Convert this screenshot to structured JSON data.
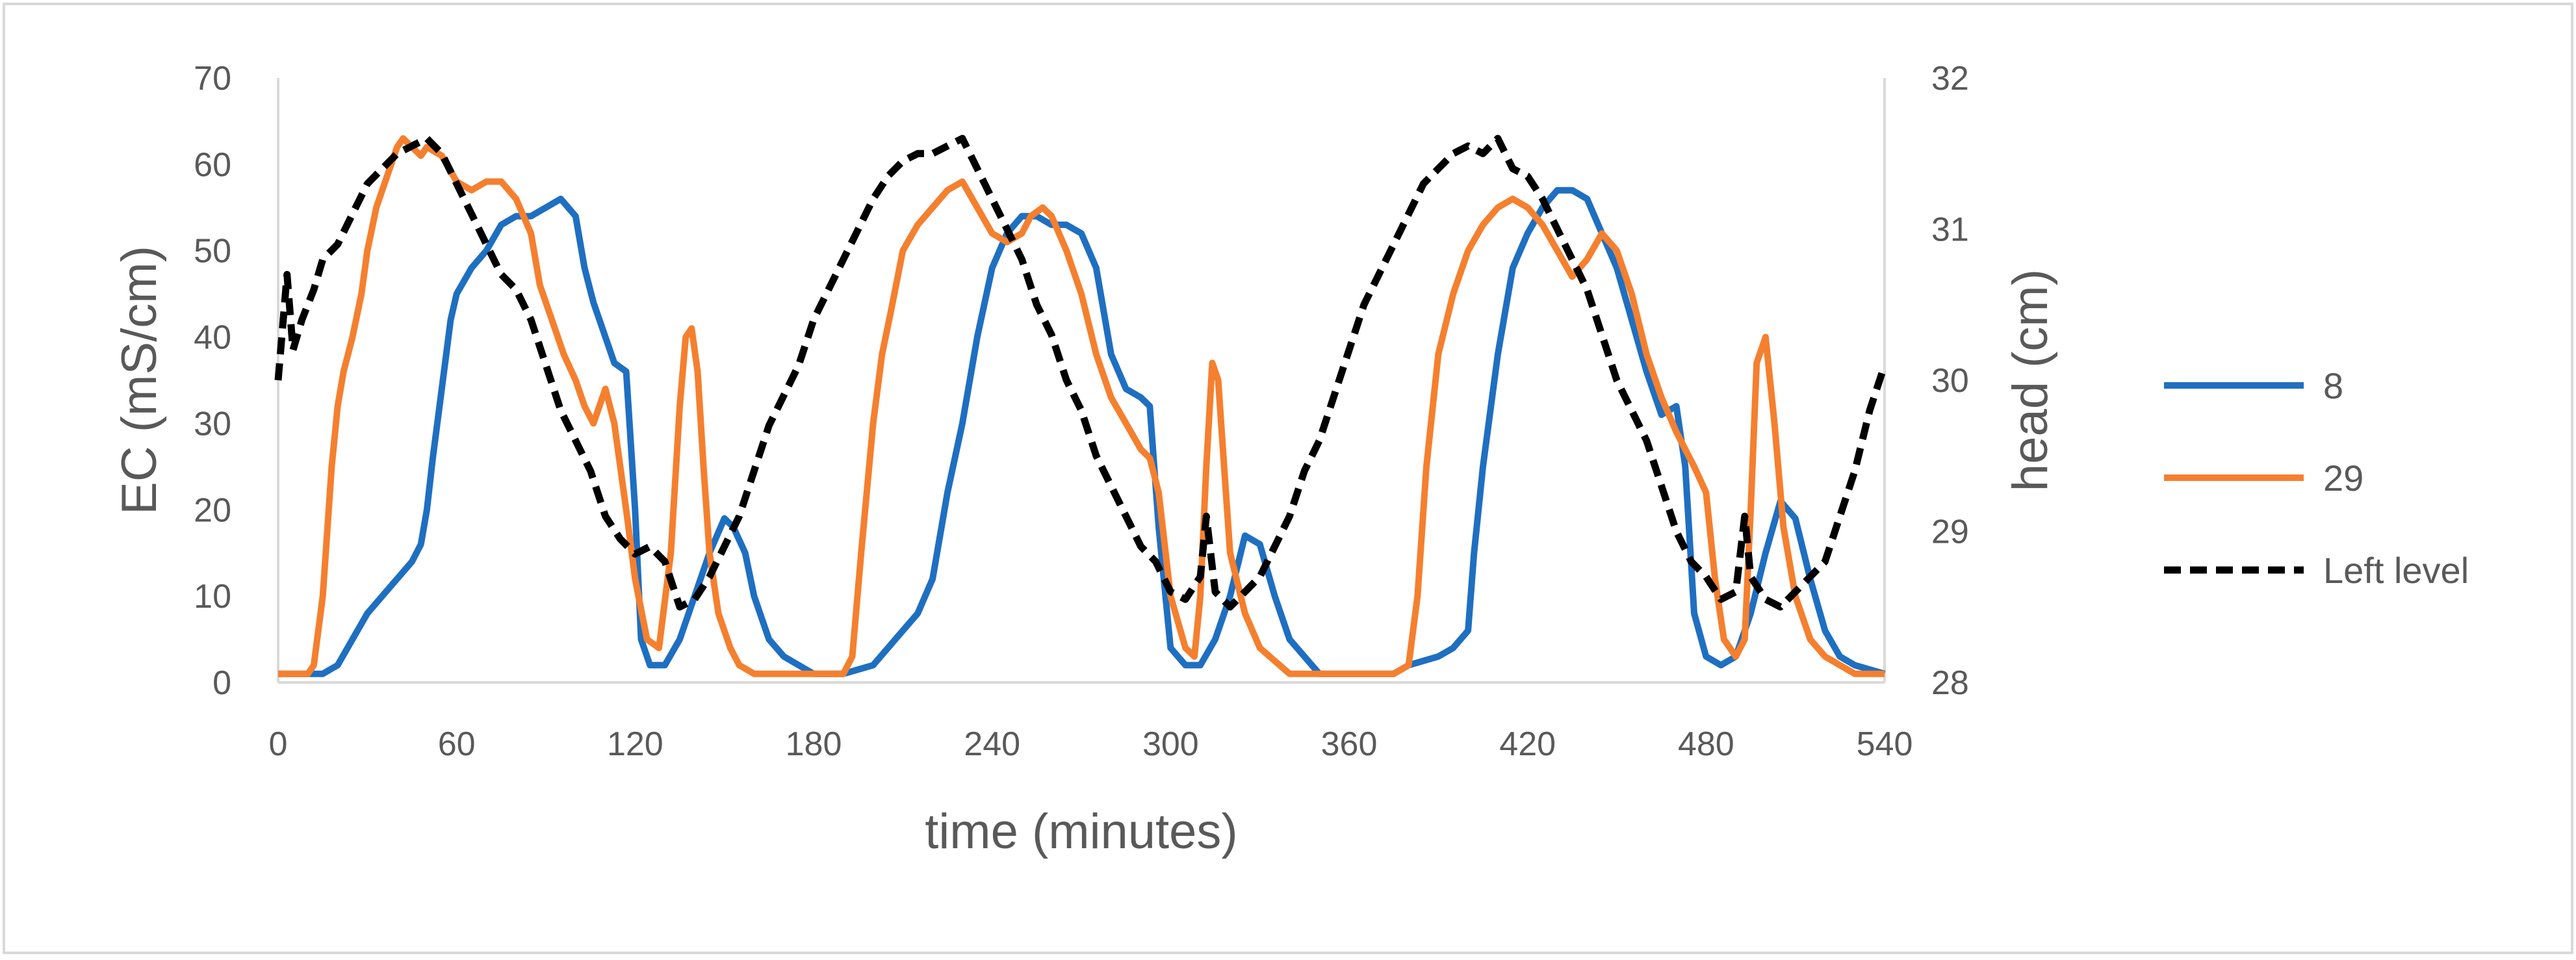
{
  "chart_data": {
    "type": "line",
    "title": "",
    "xlabel": "time (minutes)",
    "ylabel": "EC (mS/cm)",
    "y2label": "head (cm)",
    "xlim": [
      0,
      540
    ],
    "ylim": [
      0,
      70
    ],
    "y2lim": [
      28,
      32
    ],
    "xticks": [
      0,
      60,
      120,
      180,
      240,
      300,
      360,
      420,
      480,
      540
    ],
    "yticks": [
      0,
      10,
      20,
      30,
      40,
      50,
      60,
      70
    ],
    "y2ticks": [
      28,
      29,
      30,
      31,
      32
    ],
    "grid": false,
    "legend_position": "right",
    "series": [
      {
        "name": "8",
        "axis": "left",
        "color": "#1f6fc1",
        "style": "solid",
        "x": [
          0,
          15,
          20,
          25,
          30,
          35,
          40,
          45,
          48,
          50,
          52,
          55,
          58,
          60,
          65,
          70,
          75,
          80,
          85,
          90,
          95,
          100,
          103,
          106,
          110,
          113,
          117,
          120,
          122,
          125,
          130,
          135,
          140,
          145,
          150,
          153,
          157,
          160,
          165,
          170,
          175,
          180,
          190,
          200,
          205,
          210,
          215,
          220,
          225,
          230,
          235,
          240,
          245,
          250,
          255,
          260,
          265,
          270,
          275,
          280,
          285,
          290,
          293,
          296,
          300,
          305,
          310,
          315,
          320,
          325,
          330,
          335,
          340,
          345,
          350,
          360,
          370,
          375,
          380,
          390,
          395,
          400,
          402,
          405,
          410,
          415,
          420,
          425,
          430,
          435,
          440,
          445,
          450,
          455,
          460,
          465,
          470,
          473,
          476,
          480,
          485,
          490,
          495,
          500,
          505,
          510,
          515,
          520,
          525,
          530,
          540
        ],
        "values": [
          1,
          1,
          2,
          5,
          8,
          10,
          12,
          14,
          16,
          20,
          26,
          34,
          42,
          45,
          48,
          50,
          53,
          54,
          54,
          55,
          56,
          54,
          48,
          44,
          40,
          37,
          36,
          20,
          5,
          2,
          2,
          5,
          10,
          15,
          19,
          18,
          15,
          10,
          5,
          3,
          2,
          1,
          1,
          2,
          4,
          6,
          8,
          12,
          22,
          30,
          40,
          48,
          52,
          54,
          54,
          53,
          53,
          52,
          48,
          38,
          34,
          33,
          32,
          18,
          4,
          2,
          2,
          5,
          10,
          17,
          16,
          10,
          5,
          3,
          1,
          1,
          1,
          1,
          2,
          3,
          4,
          6,
          15,
          25,
          38,
          48,
          52,
          55,
          57,
          57,
          56,
          52,
          48,
          42,
          36,
          31,
          32,
          25,
          8,
          3,
          2,
          3,
          8,
          15,
          21,
          19,
          12,
          6,
          3,
          2,
          1
        ]
      },
      {
        "name": "29",
        "axis": "left",
        "color": "#f4802f",
        "style": "solid",
        "x": [
          0,
          10,
          12,
          15,
          18,
          20,
          22,
          25,
          28,
          30,
          33,
          36,
          40,
          42,
          45,
          48,
          50,
          55,
          60,
          65,
          70,
          75,
          80,
          85,
          88,
          92,
          96,
          100,
          103,
          106,
          110,
          113,
          117,
          120,
          124,
          128,
          132,
          135,
          137,
          139,
          141,
          143,
          145,
          148,
          152,
          155,
          160,
          165,
          170,
          175,
          180,
          185,
          190,
          193,
          196,
          200,
          203,
          206,
          210,
          215,
          220,
          225,
          230,
          235,
          240,
          245,
          250,
          253,
          257,
          260,
          265,
          270,
          275,
          280,
          285,
          290,
          293,
          296,
          300,
          305,
          308,
          310,
          312,
          314,
          316,
          318,
          320,
          325,
          330,
          340,
          350,
          360,
          365,
          370,
          375,
          380,
          383,
          386,
          390,
          395,
          400,
          405,
          410,
          415,
          420,
          425,
          430,
          435,
          440,
          445,
          450,
          455,
          460,
          465,
          470,
          473,
          476,
          480,
          483,
          486,
          490,
          493,
          495,
          497,
          500,
          503,
          506,
          510,
          515,
          520,
          530,
          540
        ],
        "values": [
          1,
          1,
          2,
          10,
          25,
          32,
          36,
          40,
          45,
          50,
          55,
          58,
          62,
          63,
          62,
          61,
          62,
          61,
          58,
          57,
          58,
          58,
          56,
          52,
          46,
          42,
          38,
          35,
          32,
          30,
          34,
          30,
          20,
          12,
          5,
          4,
          15,
          32,
          40,
          41,
          36,
          25,
          15,
          8,
          4,
          2,
          1,
          1,
          1,
          1,
          1,
          1,
          1,
          3,
          15,
          30,
          38,
          43,
          50,
          53,
          55,
          57,
          58,
          55,
          52,
          51,
          52,
          54,
          55,
          54,
          50,
          45,
          38,
          33,
          30,
          27,
          26,
          22,
          10,
          4,
          3,
          10,
          25,
          37,
          35,
          25,
          15,
          8,
          4,
          1,
          1,
          1,
          1,
          1,
          1,
          2,
          10,
          25,
          38,
          45,
          50,
          53,
          55,
          56,
          55,
          53,
          50,
          47,
          49,
          52,
          50,
          45,
          38,
          33,
          29,
          27,
          25,
          22,
          12,
          5,
          3,
          5,
          20,
          37,
          40,
          30,
          18,
          10,
          5,
          3,
          1,
          1
        ]
      },
      {
        "name": "Left level",
        "axis": "right",
        "color": "#000000",
        "style": "dashed",
        "x": [
          0,
          3,
          5,
          8,
          12,
          15,
          20,
          25,
          30,
          35,
          40,
          45,
          50,
          55,
          60,
          65,
          70,
          75,
          80,
          85,
          90,
          95,
          100,
          105,
          110,
          115,
          120,
          125,
          130,
          135,
          140,
          145,
          150,
          155,
          160,
          165,
          170,
          175,
          180,
          185,
          190,
          195,
          200,
          205,
          210,
          215,
          220,
          225,
          230,
          235,
          240,
          245,
          250,
          255,
          260,
          265,
          270,
          275,
          280,
          285,
          290,
          295,
          300,
          305,
          310,
          312,
          315,
          320,
          325,
          330,
          335,
          340,
          345,
          350,
          355,
          360,
          365,
          370,
          375,
          380,
          385,
          390,
          395,
          400,
          405,
          410,
          415,
          420,
          425,
          430,
          435,
          440,
          445,
          450,
          455,
          460,
          465,
          470,
          475,
          480,
          485,
          490,
          493,
          495,
          500,
          505,
          510,
          515,
          520,
          525,
          530,
          535,
          540
        ],
        "values": [
          30.0,
          30.7,
          30.2,
          30.4,
          30.6,
          30.8,
          30.9,
          31.1,
          31.3,
          31.4,
          31.5,
          31.55,
          31.6,
          31.5,
          31.3,
          31.1,
          30.9,
          30.7,
          30.6,
          30.4,
          30.1,
          29.8,
          29.6,
          29.4,
          29.1,
          28.95,
          28.85,
          28.9,
          28.8,
          28.5,
          28.55,
          28.7,
          28.9,
          29.1,
          29.4,
          29.7,
          29.9,
          30.1,
          30.4,
          30.6,
          30.8,
          31.0,
          31.2,
          31.35,
          31.45,
          31.5,
          31.5,
          31.55,
          31.6,
          31.4,
          31.2,
          31.0,
          30.8,
          30.5,
          30.3,
          30.0,
          29.8,
          29.5,
          29.3,
          29.1,
          28.9,
          28.8,
          28.6,
          28.55,
          28.7,
          29.1,
          28.6,
          28.5,
          28.6,
          28.7,
          28.9,
          29.1,
          29.4,
          29.6,
          29.9,
          30.2,
          30.5,
          30.7,
          30.9,
          31.1,
          31.3,
          31.4,
          31.5,
          31.55,
          31.5,
          31.6,
          31.4,
          31.35,
          31.2,
          31.0,
          30.8,
          30.6,
          30.3,
          30.0,
          29.8,
          29.6,
          29.3,
          29.0,
          28.8,
          28.7,
          28.55,
          28.6,
          29.1,
          28.7,
          28.55,
          28.5,
          28.6,
          28.7,
          28.8,
          29.1,
          29.4,
          29.8,
          30.1
        ]
      }
    ]
  }
}
